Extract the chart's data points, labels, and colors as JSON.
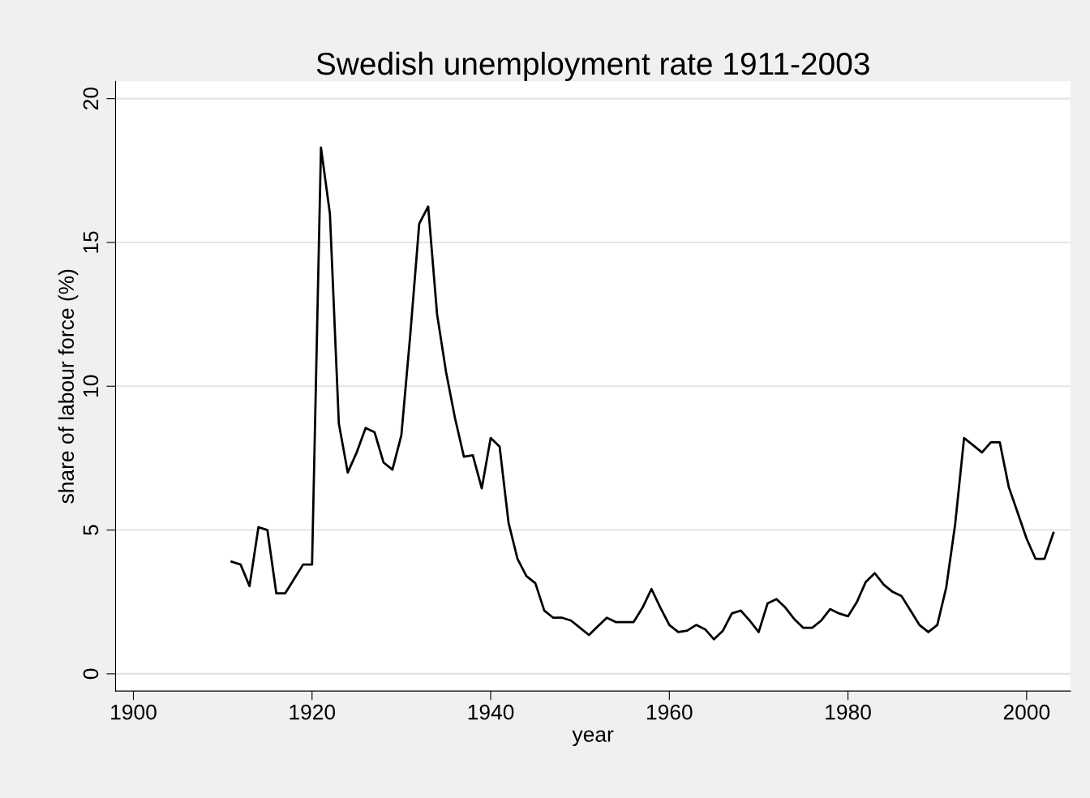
{
  "chart_data": {
    "type": "line",
    "title": "Swedish unemployment rate 1911-2003",
    "xlabel": "year",
    "ylabel": "share of labour force (%)",
    "x": [
      1911,
      1912,
      1913,
      1914,
      1915,
      1916,
      1917,
      1918,
      1919,
      1920,
      1921,
      1922,
      1923,
      1924,
      1925,
      1926,
      1927,
      1928,
      1929,
      1930,
      1931,
      1932,
      1933,
      1934,
      1935,
      1936,
      1937,
      1938,
      1939,
      1940,
      1941,
      1942,
      1943,
      1944,
      1945,
      1946,
      1947,
      1948,
      1949,
      1950,
      1951,
      1952,
      1953,
      1954,
      1955,
      1956,
      1957,
      1958,
      1959,
      1960,
      1961,
      1962,
      1963,
      1964,
      1965,
      1966,
      1967,
      1968,
      1969,
      1970,
      1971,
      1972,
      1973,
      1974,
      1975,
      1976,
      1977,
      1978,
      1979,
      1980,
      1981,
      1982,
      1983,
      1984,
      1985,
      1986,
      1987,
      1988,
      1989,
      1990,
      1991,
      1992,
      1993,
      1994,
      1995,
      1996,
      1997,
      1998,
      1999,
      2000,
      2001,
      2002,
      2003
    ],
    "series": [
      {
        "color": "#000000",
        "values": [
          3.9,
          3.8,
          3.05,
          5.1,
          5.0,
          2.8,
          2.8,
          3.3,
          3.8,
          3.8,
          18.3,
          16.0,
          8.7,
          7.0,
          7.7,
          8.55,
          8.4,
          7.35,
          7.1,
          8.3,
          11.8,
          15.65,
          16.25,
          12.5,
          10.5,
          8.9,
          7.55,
          7.6,
          6.45,
          8.2,
          7.9,
          5.25,
          4.0,
          3.4,
          3.15,
          2.2,
          1.95,
          1.95,
          1.85,
          1.6,
          1.35,
          1.65,
          1.95,
          1.8,
          1.8,
          1.8,
          2.3,
          2.95,
          2.3,
          1.7,
          1.45,
          1.5,
          1.7,
          1.55,
          1.2,
          1.5,
          2.1,
          2.2,
          1.85,
          1.45,
          2.45,
          2.6,
          2.3,
          1.9,
          1.6,
          1.6,
          1.85,
          2.25,
          2.1,
          2.0,
          2.5,
          3.2,
          3.5,
          3.1,
          2.85,
          2.7,
          2.2,
          1.7,
          1.45,
          1.7,
          3.0,
          5.2,
          8.2,
          7.95,
          7.7,
          8.05,
          8.05,
          6.5,
          5.6,
          4.7,
          4.0,
          4.0,
          4.9
        ]
      }
    ],
    "xlim": [
      1898,
      2004.9
    ],
    "ylim": [
      -0.6,
      20.6
    ],
    "xticks": [
      1900,
      1920,
      1940,
      1960,
      1980,
      2000
    ],
    "yticks": [
      0,
      5,
      10,
      15,
      20
    ],
    "grid": "y",
    "legend": false,
    "line_style": "solid",
    "marker": "none"
  }
}
